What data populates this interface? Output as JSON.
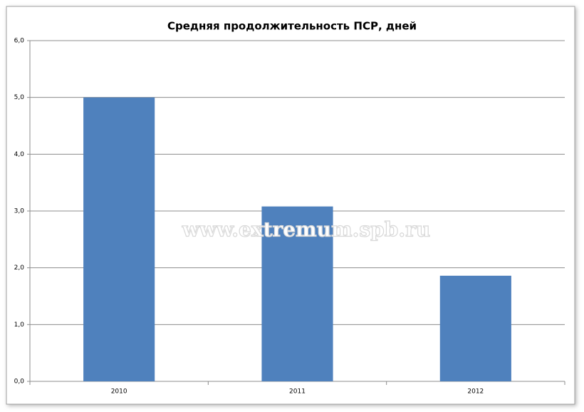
{
  "chart_data": {
    "type": "bar",
    "title": "Средняя продолжительность ПСР, дней",
    "watermark": "www.extremum.spb.ru",
    "categories": [
      "2010",
      "2011",
      "2012"
    ],
    "values": [
      5.0,
      3.08,
      1.86
    ],
    "color": "#4f81bd",
    "ylim": [
      0,
      6
    ],
    "yticks": [
      {
        "value": 0,
        "label": "0,0"
      },
      {
        "value": 1,
        "label": "1,0"
      },
      {
        "value": 2,
        "label": "2,0"
      },
      {
        "value": 3,
        "label": "3,0"
      },
      {
        "value": 4,
        "label": "4,0"
      },
      {
        "value": 5,
        "label": "5,0"
      },
      {
        "value": 6,
        "label": "6,0"
      }
    ],
    "grid": true
  }
}
